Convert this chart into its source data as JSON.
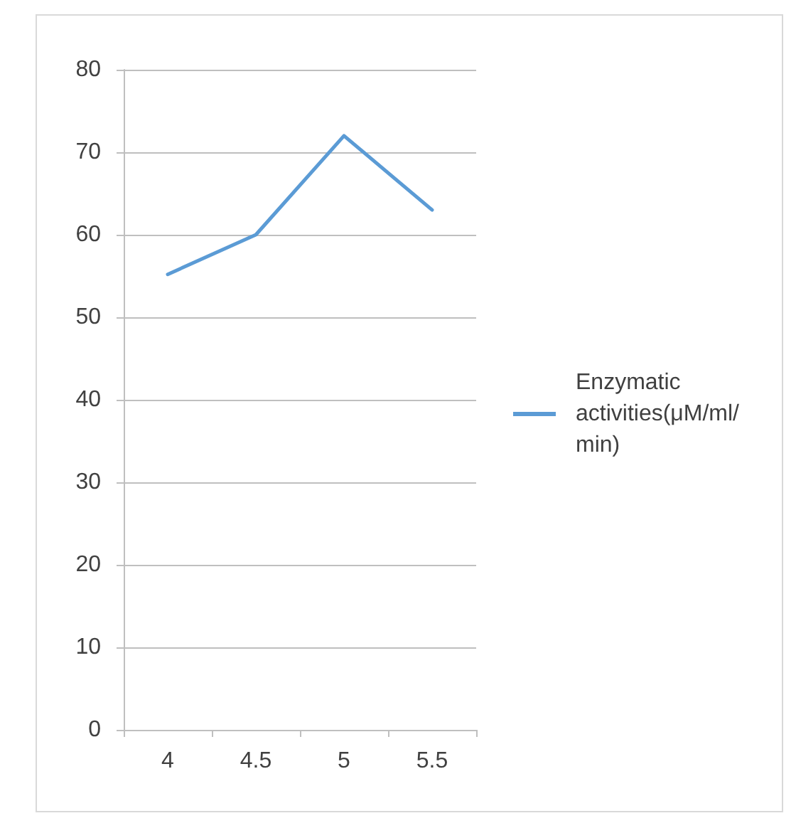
{
  "chart_data": {
    "type": "line",
    "categories": [
      "4",
      "4.5",
      "5",
      "5.5"
    ],
    "series": [
      {
        "name": "Enzymatic activities(μM/ml/min)",
        "color": "#5b9bd5",
        "values": [
          55.2,
          60,
          72,
          63
        ]
      }
    ],
    "ylim": [
      0,
      80
    ],
    "yticks": [
      0,
      10,
      20,
      30,
      40,
      50,
      60,
      70,
      80
    ],
    "grid": "y",
    "legend": "right",
    "marker": "none",
    "line_style": "solid"
  }
}
